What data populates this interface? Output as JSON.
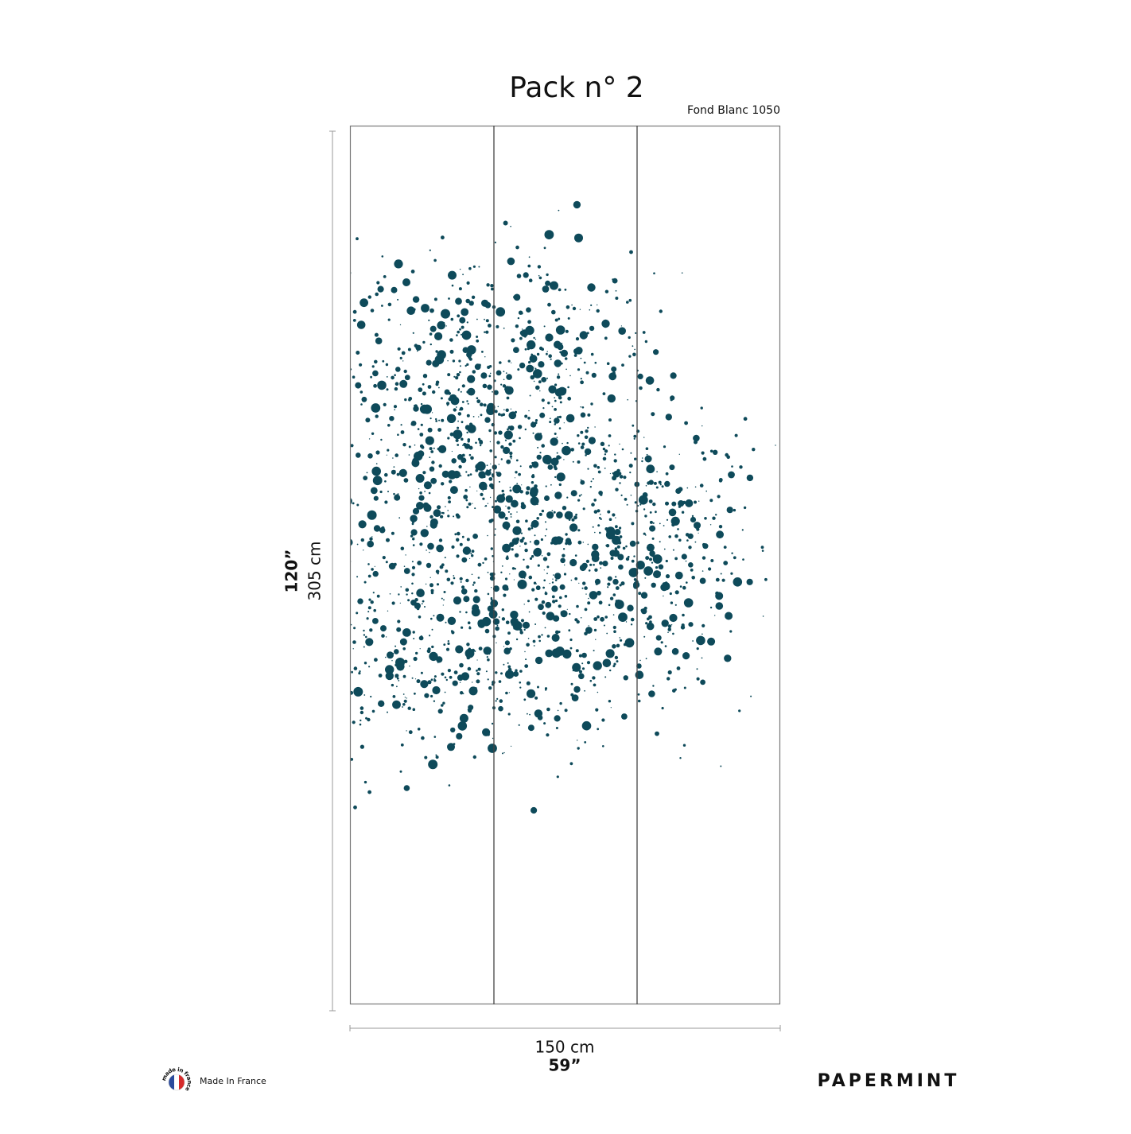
{
  "header": {
    "title": "Pack n°  2",
    "subtitle": "Fond Blanc 1050"
  },
  "dimensions": {
    "height_in": "120”",
    "height_cm": "305 cm",
    "width_cm": "150 cm",
    "width_in": "59”"
  },
  "footer": {
    "badge": "made in france",
    "origin": "Made In France",
    "brand": "PAPERMINT"
  }
}
